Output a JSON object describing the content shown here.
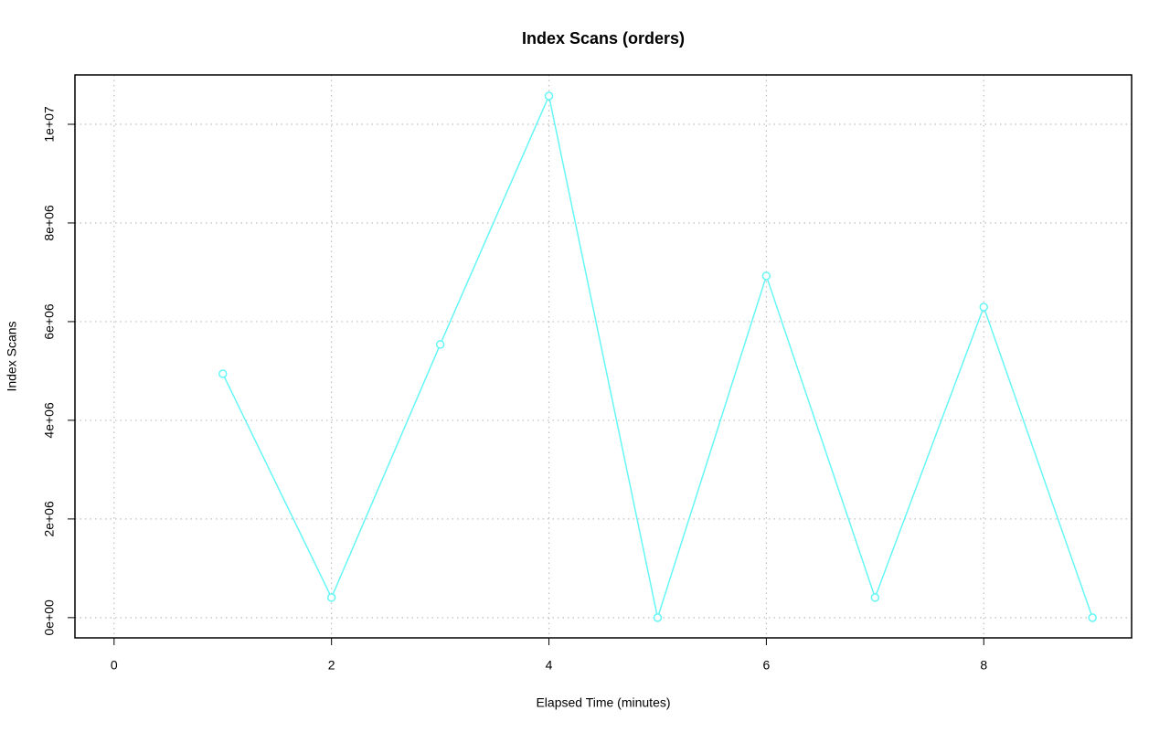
{
  "chart_data": {
    "type": "line",
    "title": "Index Scans (orders)",
    "x_label": "Elapsed Time (minutes)",
    "y_label": "Index Scans",
    "x": [
      1,
      2,
      3,
      4,
      5,
      6,
      7,
      8,
      9
    ],
    "series": [
      {
        "name": "orders",
        "color": "#66f6f6",
        "values": [
          4944000,
          407000,
          5537000,
          10574000,
          0,
          6926000,
          407000,
          6296000,
          0
        ]
      }
    ],
    "xlim": [
      -0.36,
      9.36
    ],
    "xticks": [
      0,
      2,
      4,
      6,
      8
    ],
    "ylim": [
      -410000,
      11000000
    ],
    "yticks": [
      {
        "value": 0,
        "label": "0e+00"
      },
      {
        "value": 2000000,
        "label": "2e+06"
      },
      {
        "value": 4000000,
        "label": "4e+06"
      },
      {
        "value": 6000000,
        "label": "6e+06"
      },
      {
        "value": 8000000,
        "label": "8e+06"
      },
      {
        "value": 10000000,
        "label": "1e+07"
      }
    ],
    "grid": true
  }
}
